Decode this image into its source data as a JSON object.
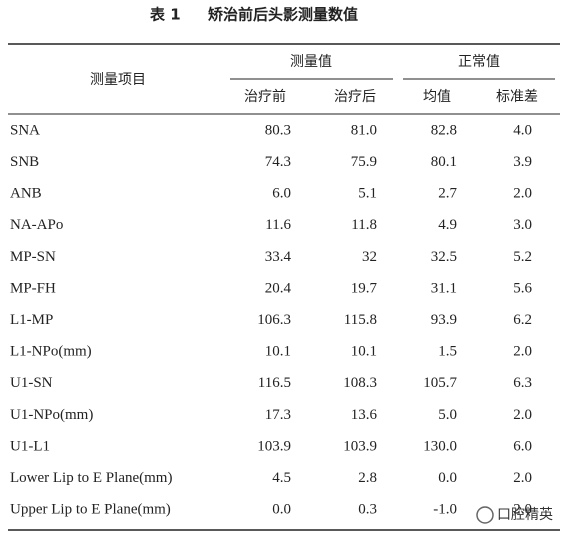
{
  "title": {
    "label": "表 1",
    "text": "矫治前后头影测量数值"
  },
  "header": {
    "item": "测量项目",
    "groups": [
      "测量值",
      "正常值"
    ],
    "subheaders": [
      "治疗前",
      "治疗后",
      "均值",
      "标准差"
    ]
  },
  "table": {
    "rows": [
      [
        "SNA",
        "80.3",
        "81.0",
        "82.8",
        "4.0"
      ],
      [
        "SNB",
        "74.3",
        "75.9",
        "80.1",
        "3.9"
      ],
      [
        "ANB",
        "6.0",
        "5.1",
        "2.7",
        "2.0"
      ],
      [
        "NA-APo",
        "11.6",
        "11.8",
        "4.9",
        "3.0"
      ],
      [
        "MP-SN",
        "33.4",
        "32",
        "32.5",
        "5.2"
      ],
      [
        "MP-FH",
        "20.4",
        "19.7",
        "31.1",
        "5.6"
      ],
      [
        "L1-MP",
        "106.3",
        "115.8",
        "93.9",
        "6.2"
      ],
      [
        "L1-NPo(mm)",
        "10.1",
        "10.1",
        "1.5",
        "2.0"
      ],
      [
        "U1-SN",
        "116.5",
        "108.3",
        "105.7",
        "6.3"
      ],
      [
        "U1-NPo(mm)",
        "17.3",
        "13.6",
        "5.0",
        "2.0"
      ],
      [
        "U1-L1",
        "103.9",
        "103.9",
        "130.0",
        "6.0"
      ],
      [
        "Lower Lip to E Plane(mm)",
        "4.5",
        "2.8",
        "0.0",
        "2.0"
      ],
      [
        "Upper Lip to E Plane(mm)",
        "0.0",
        "0.3",
        "-1.0",
        "2.0"
      ]
    ]
  },
  "watermark": "口腔精英"
}
